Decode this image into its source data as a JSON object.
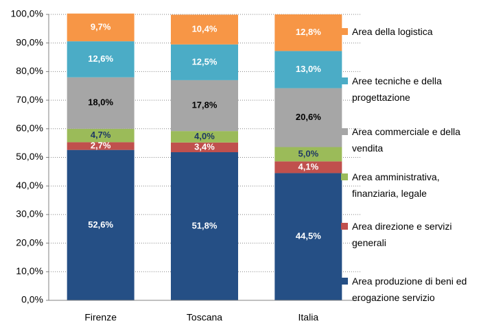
{
  "chart_data": {
    "type": "stacked_bar",
    "categories": [
      "Firenze",
      "Toscana",
      "Italia"
    ],
    "series": [
      {
        "name": "Area produzione di beni ed erogazione servizio",
        "color": "#254f85",
        "label_color": "#ffffff",
        "values": [
          52.6,
          51.8,
          44.5
        ],
        "value_labels": [
          "52,6%",
          "51,8%",
          "44,5%"
        ]
      },
      {
        "name": "Area direzione e servizi generali",
        "color": "#c0504d",
        "label_color": "#ffffff",
        "values": [
          2.7,
          3.4,
          4.1
        ],
        "value_labels": [
          "2,7%",
          "3,4%",
          "4,1%"
        ]
      },
      {
        "name": "Area amministrativa, finanziaria, legale",
        "color": "#9bbb59",
        "label_color": "#1f3864",
        "values": [
          4.7,
          4.0,
          5.0
        ],
        "value_labels": [
          "4,7%",
          "4,0%",
          "5,0%"
        ]
      },
      {
        "name": "Area commerciale e della vendita",
        "color": "#a6a6a6",
        "label_color": "#000000",
        "values": [
          18.0,
          17.8,
          20.6
        ],
        "value_labels": [
          "18,0%",
          "17,8%",
          "20,6%"
        ]
      },
      {
        "name": "Aree tecniche e della progettazione",
        "color": "#4bacc6",
        "label_color": "#ffffff",
        "values": [
          12.6,
          12.5,
          13.0
        ],
        "value_labels": [
          "12,6%",
          "12,5%",
          "13,0%"
        ]
      },
      {
        "name": "Area della logistica",
        "color": "#f79646",
        "label_color": "#ffffff",
        "values": [
          9.7,
          10.4,
          12.8
        ],
        "value_labels": [
          "9,7%",
          "10,4%",
          "12,8%"
        ]
      }
    ],
    "ylim": [
      0,
      100
    ],
    "yticks": [
      {
        "value": 0,
        "label": "0,0%"
      },
      {
        "value": 10,
        "label": "10,0%"
      },
      {
        "value": 20,
        "label": "20,0%"
      },
      {
        "value": 30,
        "label": "30,0%"
      },
      {
        "value": 40,
        "label": "40,0%"
      },
      {
        "value": 50,
        "label": "50,0%"
      },
      {
        "value": 60,
        "label": "60,0%"
      },
      {
        "value": 70,
        "label": "70,0%"
      },
      {
        "value": 80,
        "label": "80,0%"
      },
      {
        "value": 90,
        "label": "90,0%"
      },
      {
        "value": 100,
        "label": "100,0%"
      }
    ],
    "grid": true,
    "legend": "right"
  }
}
